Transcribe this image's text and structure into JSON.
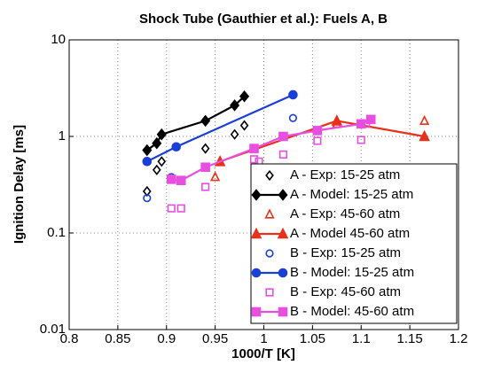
{
  "chart_data": {
    "type": "line",
    "title": "Shock Tube (Gauthier et al.): Fuels A, B",
    "xlabel": "1000/T [K]",
    "ylabel": "Ignition Delay [ms]",
    "xlim": [
      0.8,
      1.2
    ],
    "xticks": [
      0.8,
      0.85,
      0.9,
      0.95,
      1,
      1.05,
      1.1,
      1.15,
      1.2
    ],
    "ylim": [
      0.01,
      10
    ],
    "yticks": [
      0.01,
      0.1,
      1,
      10
    ],
    "ylog": true,
    "grid": true,
    "legend": "lower right",
    "series": [
      {
        "name": "A - Exp: 15-25 atm",
        "color": "#000000",
        "marker": "diamond",
        "filled": false,
        "line": false,
        "x": [
          0.88,
          0.89,
          0.895,
          0.94,
          0.97,
          0.98
        ],
        "values": [
          0.27,
          0.45,
          0.55,
          0.75,
          1.05,
          1.3
        ]
      },
      {
        "name": "A - Model: 15-25 atm",
        "color": "#000000",
        "marker": "diamond",
        "filled": true,
        "line": true,
        "x": [
          0.88,
          0.89,
          0.895,
          0.94,
          0.97,
          0.98
        ],
        "values": [
          0.72,
          0.85,
          1.05,
          1.45,
          2.1,
          2.6
        ]
      },
      {
        "name": "A - Exp: 45-60 atm",
        "color": "#e8311a",
        "marker": "triangle",
        "filled": false,
        "line": false,
        "x": [
          0.95,
          0.955,
          1.075,
          1.165
        ],
        "values": [
          0.38,
          0.55,
          1.35,
          1.45
        ]
      },
      {
        "name": "A - Model 45-60 atm",
        "color": "#e8311a",
        "marker": "triangle",
        "filled": true,
        "line": true,
        "x": [
          0.955,
          1.075,
          1.165
        ],
        "values": [
          0.55,
          1.45,
          1.0
        ]
      },
      {
        "name": "B - Exp: 15-25 atm",
        "color": "#1a3fd8",
        "marker": "circle",
        "filled": false,
        "line": false,
        "x": [
          0.88,
          0.905,
          1.03
        ],
        "values": [
          0.23,
          0.38,
          1.55
        ]
      },
      {
        "name": "B - Model: 15-25 atm",
        "color": "#1a3fd8",
        "marker": "circle",
        "filled": true,
        "line": true,
        "x": [
          0.88,
          0.91,
          1.03
        ],
        "values": [
          0.55,
          0.78,
          2.7
        ]
      },
      {
        "name": "B - Exp: 45-60 atm",
        "color": "#e84fe0",
        "marker": "square",
        "filled": false,
        "line": false,
        "x": [
          0.905,
          0.915,
          0.94,
          0.99,
          0.995,
          1.02,
          1.055,
          1.1,
          1.105
        ],
        "values": [
          0.18,
          0.18,
          0.3,
          0.58,
          0.55,
          0.65,
          0.9,
          0.92,
          1.35
        ]
      },
      {
        "name": "B - Model: 45-60 atm",
        "color": "#e84fe0",
        "marker": "square",
        "filled": true,
        "line": true,
        "x": [
          0.905,
          0.915,
          0.94,
          0.99,
          1.02,
          1.055,
          1.1,
          1.11
        ],
        "values": [
          0.36,
          0.35,
          0.48,
          0.75,
          1.0,
          1.15,
          1.35,
          1.5
        ]
      }
    ]
  }
}
